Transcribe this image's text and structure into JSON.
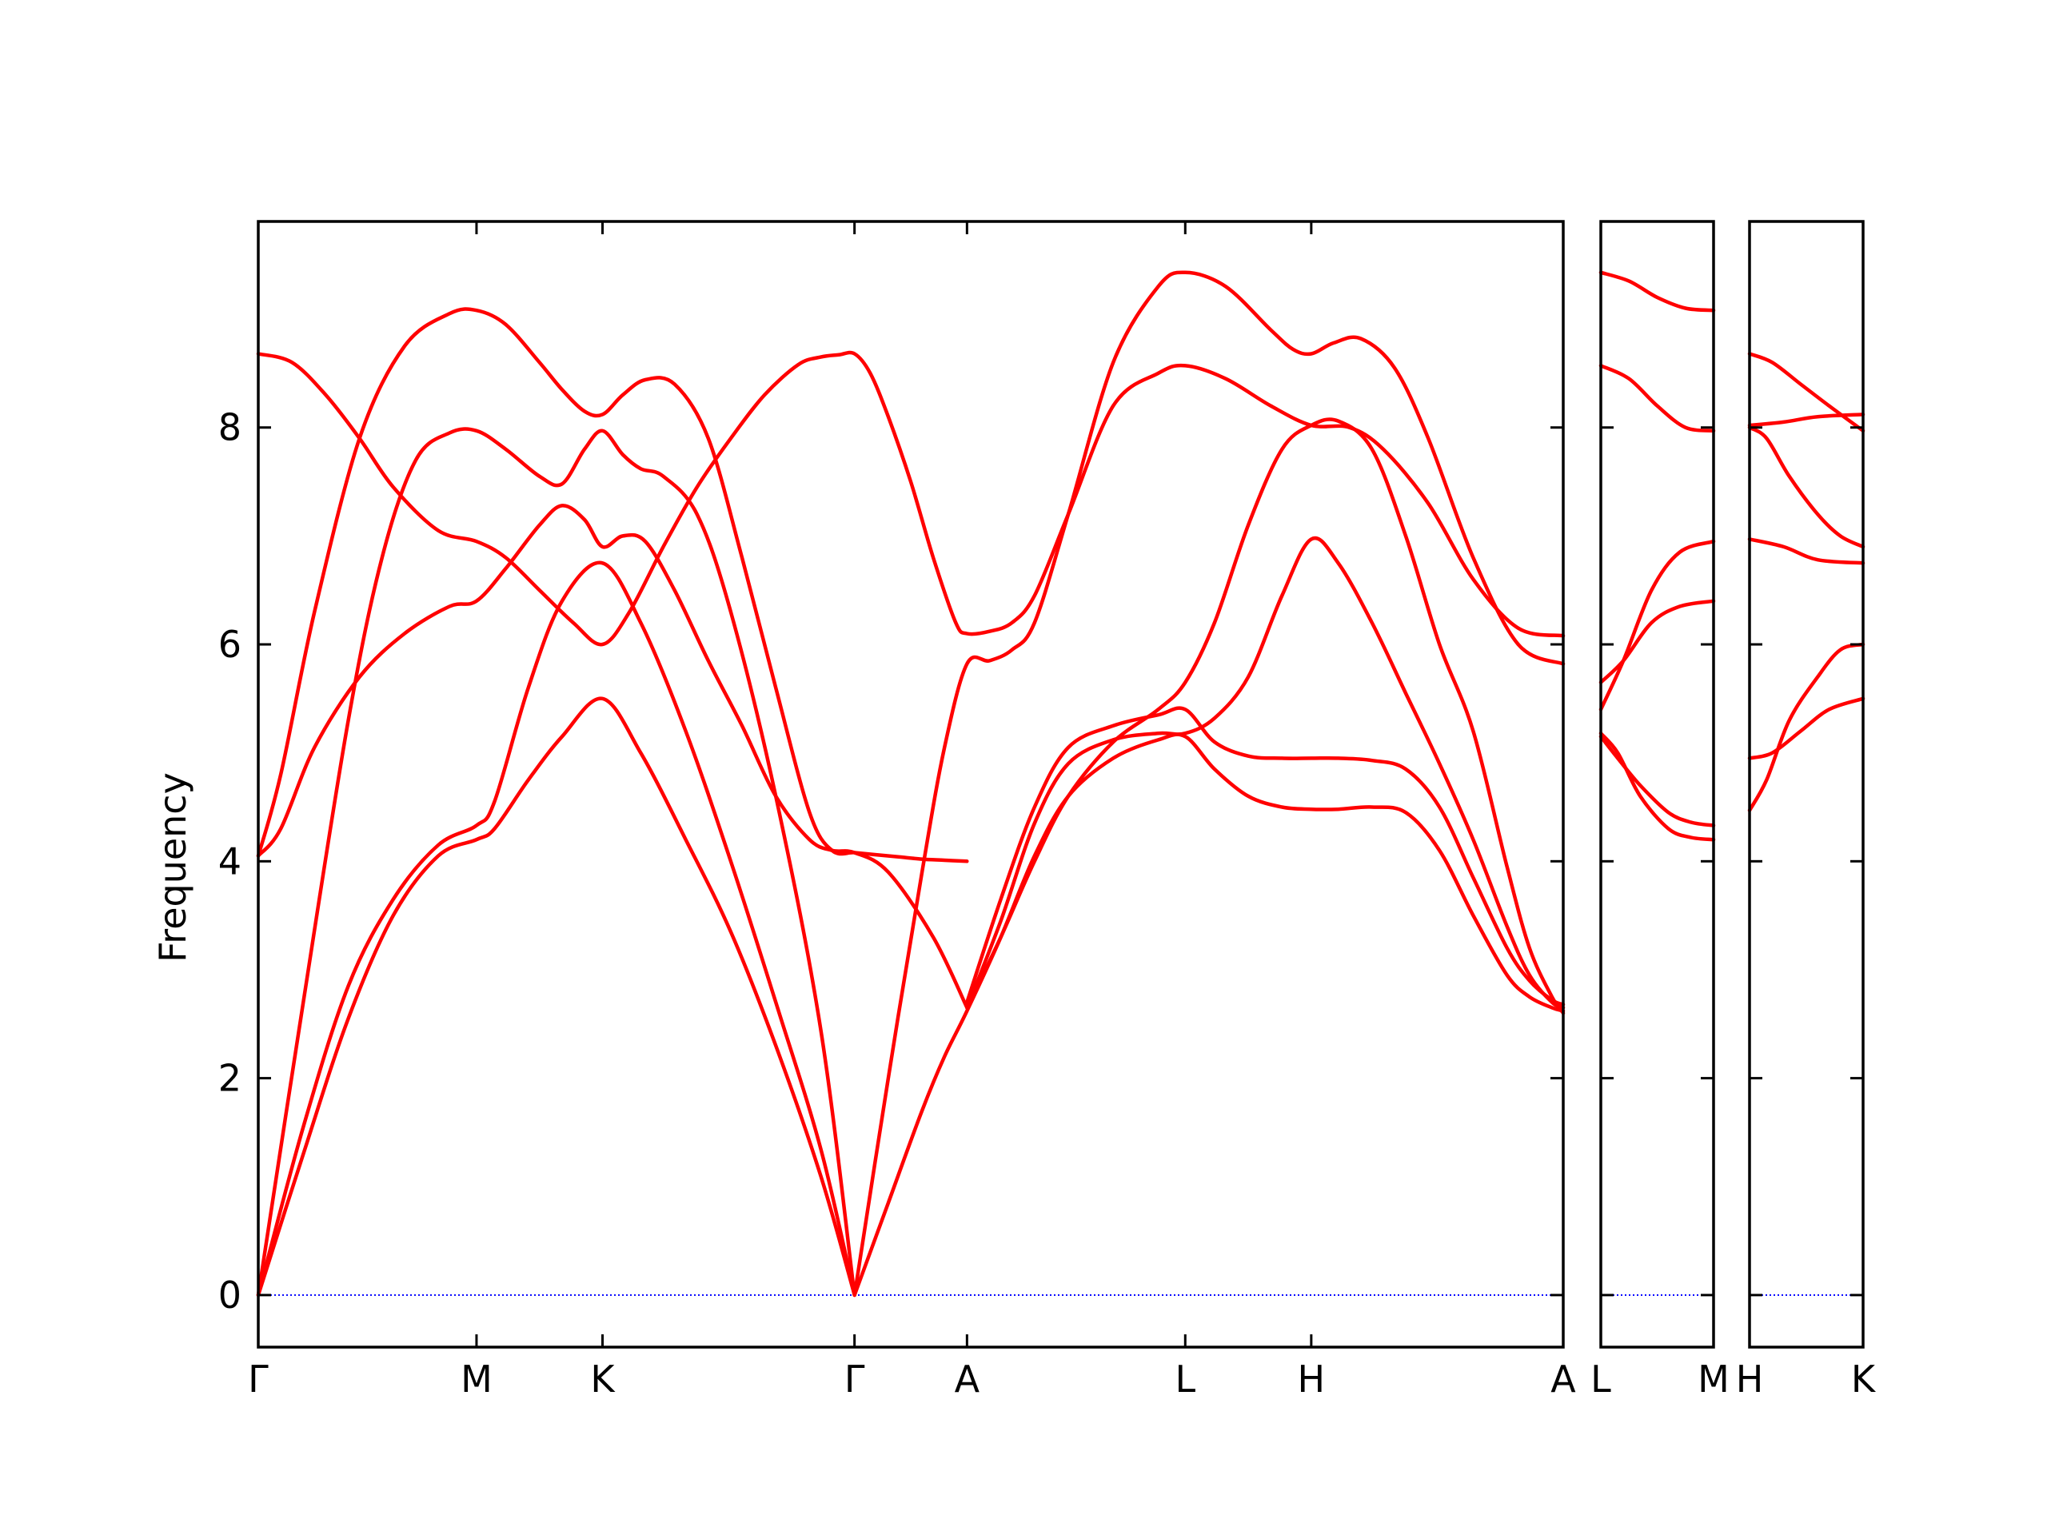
{
  "chart_data": {
    "type": "line",
    "title": "",
    "xlabel": "",
    "ylabel": "Frequency",
    "ylim": [
      -0.48,
      9.9
    ],
    "yticks": [
      0,
      2,
      4,
      6,
      8
    ],
    "grid": false,
    "line_color": "#ff0000",
    "zero_line_color": "#0000ff",
    "panels": [
      {
        "xlim": [
          0,
          5.8
        ],
        "ticks": [
          {
            "x": 0.0,
            "label": "Γ"
          },
          {
            "x": 0.97,
            "label": "M"
          },
          {
            "x": 1.53,
            "label": "K"
          },
          {
            "x": 2.65,
            "label": "Γ"
          },
          {
            "x": 3.15,
            "label": "A"
          },
          {
            "x": 4.12,
            "label": "L"
          },
          {
            "x": 4.68,
            "label": "H"
          },
          {
            "x": 5.8,
            "label": "A"
          }
        ],
        "series": [
          {
            "x": [
              0,
              0.2,
              0.4,
              0.6,
              0.8,
              0.97,
              1.05,
              1.2,
              1.35,
              1.53,
              1.7,
              1.9,
              2.1,
              2.3,
              2.5,
              2.65
            ],
            "y": [
              0,
              1.3,
              2.55,
              3.5,
              4.05,
              4.2,
              4.3,
              4.75,
              5.15,
              5.5,
              5.0,
              4.2,
              3.35,
              2.3,
              1.1,
              0
            ]
          },
          {
            "x": [
              0,
              0.2,
              0.4,
              0.6,
              0.8,
              0.97,
              1.05,
              1.2,
              1.35,
              1.53,
              1.7,
              1.9,
              2.1,
              2.3,
              2.5,
              2.65
            ],
            "y": [
              0,
              1.55,
              2.85,
              3.65,
              4.15,
              4.33,
              4.55,
              5.6,
              6.4,
              6.75,
              6.2,
              5.2,
              4.0,
              2.7,
              1.35,
              0
            ]
          },
          {
            "x": [
              0,
              0.2,
              0.4,
              0.55,
              0.7,
              0.85,
              0.97,
              1.1,
              1.25,
              1.35,
              1.45,
              1.53,
              1.62,
              1.7,
              1.8,
              1.95,
              2.1,
              2.3,
              2.5,
              2.65
            ],
            "y": [
              0,
              2.7,
              5.3,
              6.8,
              7.7,
              7.95,
              7.97,
              7.8,
              7.55,
              7.48,
              7.8,
              7.97,
              7.75,
              7.62,
              7.55,
              7.2,
              6.3,
              4.6,
              2.45,
              0
            ]
          },
          {
            "x": [
              0,
              0.1,
              0.25,
              0.45,
              0.65,
              0.85,
              0.97,
              1.1,
              1.25,
              1.35,
              1.45,
              1.53,
              1.62,
              1.72,
              1.85,
              2.0,
              2.15,
              2.3,
              2.45,
              2.55,
              2.65,
              2.8,
              3.0,
              3.15
            ],
            "y": [
              4.05,
              4.3,
              5.05,
              5.7,
              6.1,
              6.35,
              6.4,
              6.7,
              7.1,
              7.28,
              7.15,
              6.9,
              7.0,
              6.95,
              6.5,
              5.85,
              5.25,
              4.6,
              4.2,
              4.1,
              4.08,
              3.9,
              3.3,
              2.65
            ]
          },
          {
            "x": [
              0,
              0.1,
              0.25,
              0.45,
              0.65,
              0.85,
              0.97,
              1.1,
              1.25,
              1.35,
              1.45,
              1.53,
              1.62,
              1.72,
              1.85,
              2.0,
              2.15,
              2.3,
              2.45,
              2.55,
              2.65,
              2.75,
              2.85,
              2.95,
              3.05,
              3.15
            ],
            "y": [
              4.05,
              4.8,
              6.3,
              7.9,
              8.75,
              9.05,
              9.08,
              8.95,
              8.6,
              8.35,
              8.15,
              8.12,
              8.3,
              8.44,
              8.4,
              7.9,
              6.8,
              5.6,
              4.45,
              4.1,
              4.08,
              4.06,
              4.04,
              4.02,
              4.01,
              4.0
            ]
          },
          {
            "x": [
              0,
              0.15,
              0.3,
              0.45,
              0.6,
              0.8,
              0.97,
              1.1,
              1.25,
              1.4,
              1.53,
              1.65,
              1.8,
              1.95,
              2.1,
              2.25,
              2.4,
              2.5,
              2.58,
              2.65,
              2.72,
              2.8,
              2.9,
              3.0,
              3.1,
              3.15,
              3.25,
              3.35,
              3.45,
              3.6,
              3.8,
              4.0,
              4.12,
              4.3,
              4.5,
              4.68,
              4.85,
              5.0,
              5.2,
              5.4,
              5.6,
              5.8
            ],
            "y": [
              8.68,
              8.6,
              8.3,
              7.9,
              7.45,
              7.05,
              6.95,
              6.8,
              6.5,
              6.2,
              6.0,
              6.3,
              6.9,
              7.45,
              7.9,
              8.3,
              8.58,
              8.65,
              8.67,
              8.68,
              8.5,
              8.1,
              7.5,
              6.8,
              6.2,
              6.1,
              6.12,
              6.2,
              6.45,
              7.2,
              8.2,
              8.5,
              8.57,
              8.45,
              8.2,
              8.02,
              8.0,
              7.8,
              7.3,
              6.6,
              6.15,
              6.08
            ]
          },
          {
            "x": [
              2.65,
              2.8,
              2.95,
              3.05,
              3.15,
              3.25,
              3.35,
              3.45,
              3.6,
              3.8,
              4.0,
              4.12,
              4.3,
              4.5,
              4.6,
              4.68,
              4.78,
              4.9,
              5.05,
              5.2,
              5.4,
              5.6,
              5.8
            ],
            "y": [
              0,
              2.0,
              3.9,
              5.05,
              5.82,
              5.85,
              5.95,
              6.2,
              7.2,
              8.6,
              9.3,
              9.43,
              9.3,
              8.9,
              8.72,
              8.68,
              8.78,
              8.82,
              8.55,
              7.9,
              6.8,
              6.0,
              5.82
            ]
          },
          {
            "x": [
              2.65,
              2.8,
              2.95,
              3.05,
              3.15,
              3.3,
              3.45,
              3.6,
              3.8,
              4.0,
              4.12,
              4.25,
              4.4,
              4.55,
              4.68,
              4.8,
              4.95,
              5.1,
              5.25,
              5.4,
              5.55,
              5.65,
              5.75,
              5.8
            ],
            "y": [
              0,
              0.85,
              1.7,
              2.2,
              2.62,
              3.3,
              4.05,
              4.6,
              4.95,
              5.12,
              5.15,
              4.85,
              4.6,
              4.5,
              4.48,
              4.48,
              4.5,
              4.45,
              4.1,
              3.5,
              2.95,
              2.75,
              2.65,
              2.62
            ]
          },
          {
            "x": [
              3.15,
              3.3,
              3.45,
              3.6,
              3.8,
              4.0,
              4.12,
              4.25,
              4.4,
              4.55,
              4.68,
              4.8,
              4.95,
              5.1,
              5.25,
              5.4,
              5.55,
              5.65,
              5.75,
              5.8
            ],
            "y": [
              2.65,
              3.45,
              4.35,
              4.9,
              5.12,
              5.18,
              5.18,
              5.32,
              5.7,
              6.45,
              6.97,
              6.75,
              6.2,
              5.55,
              4.9,
              4.2,
              3.4,
              2.95,
              2.7,
              2.65
            ]
          },
          {
            "x": [
              3.15,
              3.3,
              3.45,
              3.6,
              3.8,
              4.0,
              4.12,
              4.25,
              4.4,
              4.55,
              4.68,
              4.8,
              4.95,
              5.1,
              5.25,
              5.4,
              5.55,
              5.65,
              5.75,
              5.8
            ],
            "y": [
              2.7,
              3.65,
              4.5,
              5.05,
              5.25,
              5.35,
              5.4,
              5.1,
              4.97,
              4.95,
              4.95,
              4.95,
              4.93,
              4.85,
              4.5,
              3.85,
              3.2,
              2.9,
              2.72,
              2.68
            ]
          },
          {
            "x": [
              3.15,
              3.3,
              3.45,
              3.6,
              3.8,
              4.0,
              4.12,
              4.25,
              4.4,
              4.55,
              4.68,
              4.8,
              4.95,
              5.1,
              5.25,
              5.4,
              5.55,
              5.65,
              5.75,
              5.8
            ],
            "y": [
              2.65,
              3.3,
              4.0,
              4.6,
              5.1,
              5.4,
              5.65,
              6.2,
              7.1,
              7.8,
              8.02,
              8.06,
              7.8,
              7.0,
              6.0,
              5.2,
              3.95,
              3.2,
              2.75,
              2.6
            ]
          }
        ]
      },
      {
        "xlim": [
          0,
          1
        ],
        "ticks": [
          {
            "x": 0,
            "label": "L"
          },
          {
            "x": 1,
            "label": "M"
          }
        ],
        "series": [
          {
            "x": [
              0,
              0.25,
              0.5,
              0.75,
              1
            ],
            "y": [
              9.43,
              9.35,
              9.2,
              9.1,
              9.08
            ]
          },
          {
            "x": [
              0,
              0.25,
              0.5,
              0.75,
              1
            ],
            "y": [
              8.57,
              8.45,
              8.2,
              8.0,
              7.97
            ]
          },
          {
            "x": [
              0,
              0.2,
              0.45,
              0.7,
              1
            ],
            "y": [
              5.65,
              5.85,
              6.2,
              6.35,
              6.4
            ]
          },
          {
            "x": [
              0,
              0.2,
              0.45,
              0.7,
              1
            ],
            "y": [
              5.4,
              5.85,
              6.5,
              6.85,
              6.95
            ]
          },
          {
            "x": [
              0,
              0.15,
              0.35,
              0.6,
              0.8,
              1
            ],
            "y": [
              5.18,
              5.0,
              4.6,
              4.3,
              4.22,
              4.2
            ]
          },
          {
            "x": [
              0,
              0.15,
              0.35,
              0.6,
              0.8,
              1
            ],
            "y": [
              5.15,
              4.95,
              4.7,
              4.45,
              4.36,
              4.33
            ]
          }
        ]
      },
      {
        "xlim": [
          0,
          1
        ],
        "ticks": [
          {
            "x": 0,
            "label": "H"
          },
          {
            "x": 1,
            "label": "K"
          }
        ],
        "series": [
          {
            "x": [
              0,
              0.2,
              0.45,
              0.7,
              1
            ],
            "y": [
              8.68,
              8.6,
              8.4,
              8.2,
              7.97
            ]
          },
          {
            "x": [
              0,
              0.3,
              0.6,
              1
            ],
            "y": [
              8.02,
              8.05,
              8.1,
              8.12
            ]
          },
          {
            "x": [
              0,
              0.15,
              0.35,
              0.6,
              0.8,
              1
            ],
            "y": [
              8.0,
              7.9,
              7.55,
              7.2,
              7.0,
              6.9
            ]
          },
          {
            "x": [
              0,
              0.3,
              0.6,
              1
            ],
            "y": [
              6.97,
              6.9,
              6.78,
              6.75
            ]
          },
          {
            "x": [
              0,
              0.15,
              0.35,
              0.6,
              0.8,
              1
            ],
            "y": [
              4.47,
              4.75,
              5.3,
              5.7,
              5.95,
              6.0
            ]
          },
          {
            "x": [
              0,
              0.2,
              0.45,
              0.7,
              1
            ],
            "y": [
              4.95,
              5.0,
              5.2,
              5.4,
              5.5
            ]
          }
        ]
      }
    ]
  }
}
